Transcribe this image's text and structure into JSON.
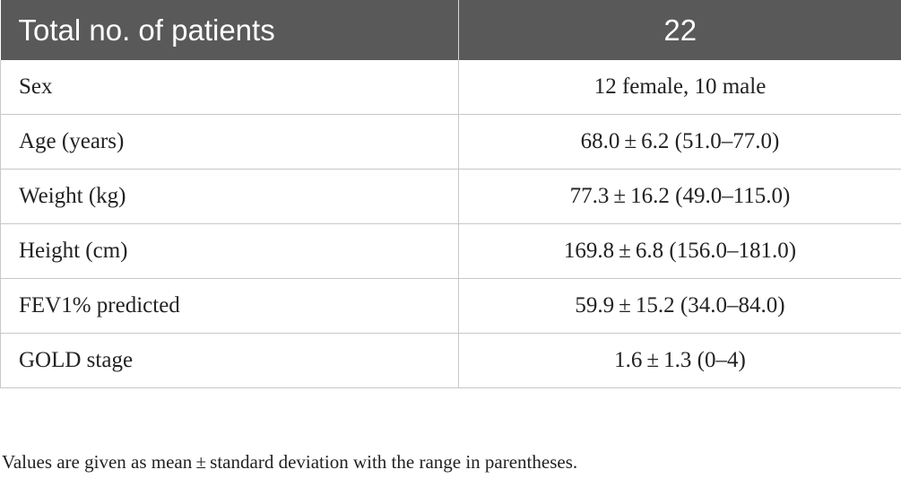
{
  "table": {
    "header": {
      "label": "Total no. of patients",
      "value": "22"
    },
    "rows": [
      {
        "label": "Sex",
        "value": "12 female, 10 male"
      },
      {
        "label": "Age (years)",
        "value": "68.0 ± 6.2 (51.0–77.0)"
      },
      {
        "label": "Weight (kg)",
        "value": "77.3 ± 16.2 (49.0–115.0)"
      },
      {
        "label": "Height (cm)",
        "value": "169.8 ± 6.8 (156.0–181.0)"
      },
      {
        "label": "FEV1% predicted",
        "value": "59.9 ± 15.2 (34.0–84.0)"
      },
      {
        "label": "GOLD stage",
        "value": "1.6 ± 1.3 (0–4)"
      }
    ]
  },
  "footnote": "Values are given as mean ± standard deviation with the range in parentheses."
}
